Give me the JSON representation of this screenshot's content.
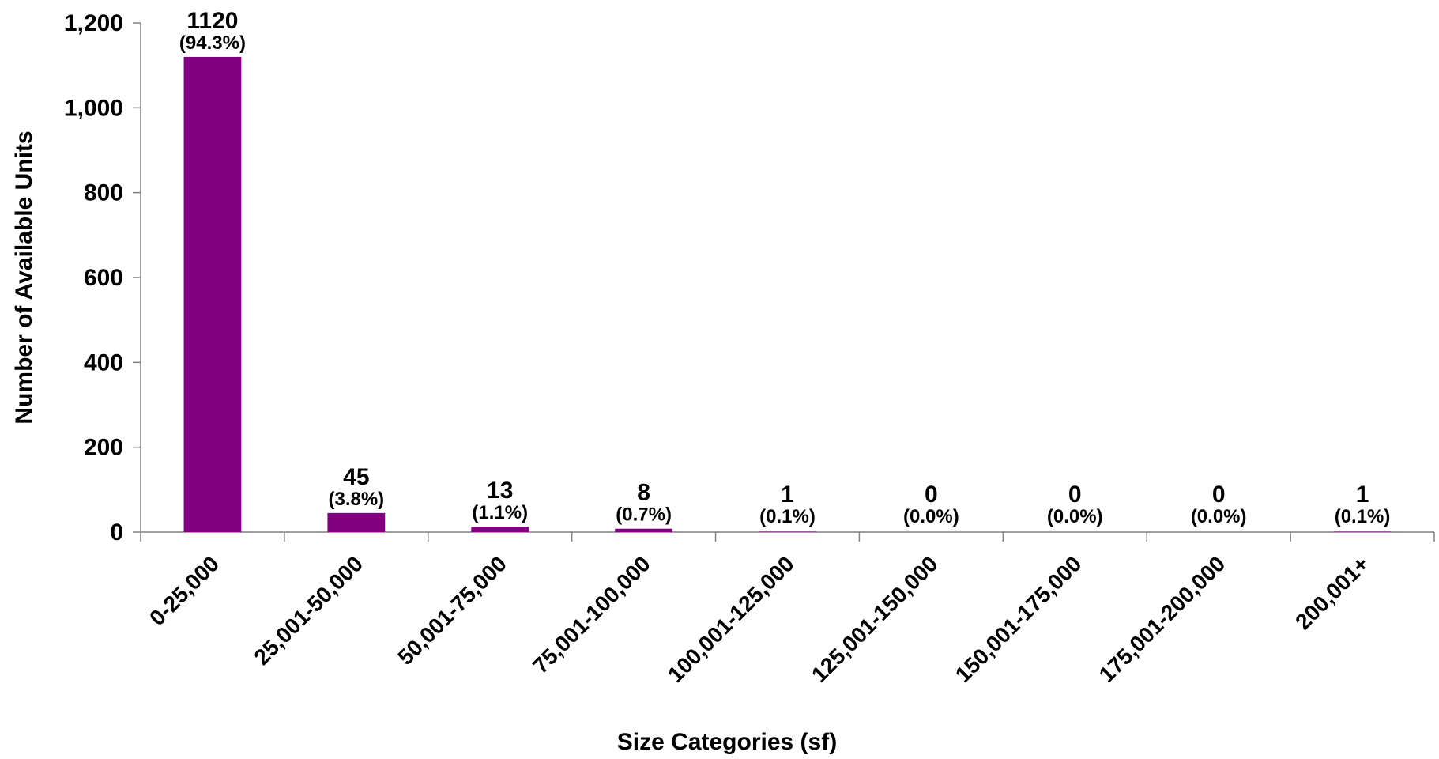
{
  "chart_data": {
    "type": "bar",
    "title": "",
    "xlabel": "Size Categories (sf)",
    "ylabel": "Number of Available Units",
    "ylim": [
      0,
      1200
    ],
    "yticks": [
      0,
      200,
      400,
      600,
      800,
      1000,
      1200
    ],
    "ytick_labels": [
      "0",
      "200",
      "400",
      "600",
      "800",
      "1,000",
      "1,200"
    ],
    "categories": [
      "0-25,000",
      "25,001-50,000",
      "50,001-75,000",
      "75,001-100,000",
      "100,001-125,000",
      "125,001-150,000",
      "150,001-175,000",
      "175,001-200,000",
      "200,001+"
    ],
    "values": [
      1120,
      45,
      13,
      8,
      1,
      0,
      0,
      0,
      1
    ],
    "value_labels": [
      "1120",
      "45",
      "13",
      "8",
      "1",
      "0",
      "0",
      "0",
      "1"
    ],
    "percent_labels": [
      "(94.3%)",
      "(3.8%)",
      "(1.1%)",
      "(0.7%)",
      "(0.1%)",
      "(0.0%)",
      "(0.0%)",
      "(0.0%)",
      "(0.1%)"
    ],
    "grid": false,
    "legend": "none",
    "bar_color": "#800080"
  }
}
